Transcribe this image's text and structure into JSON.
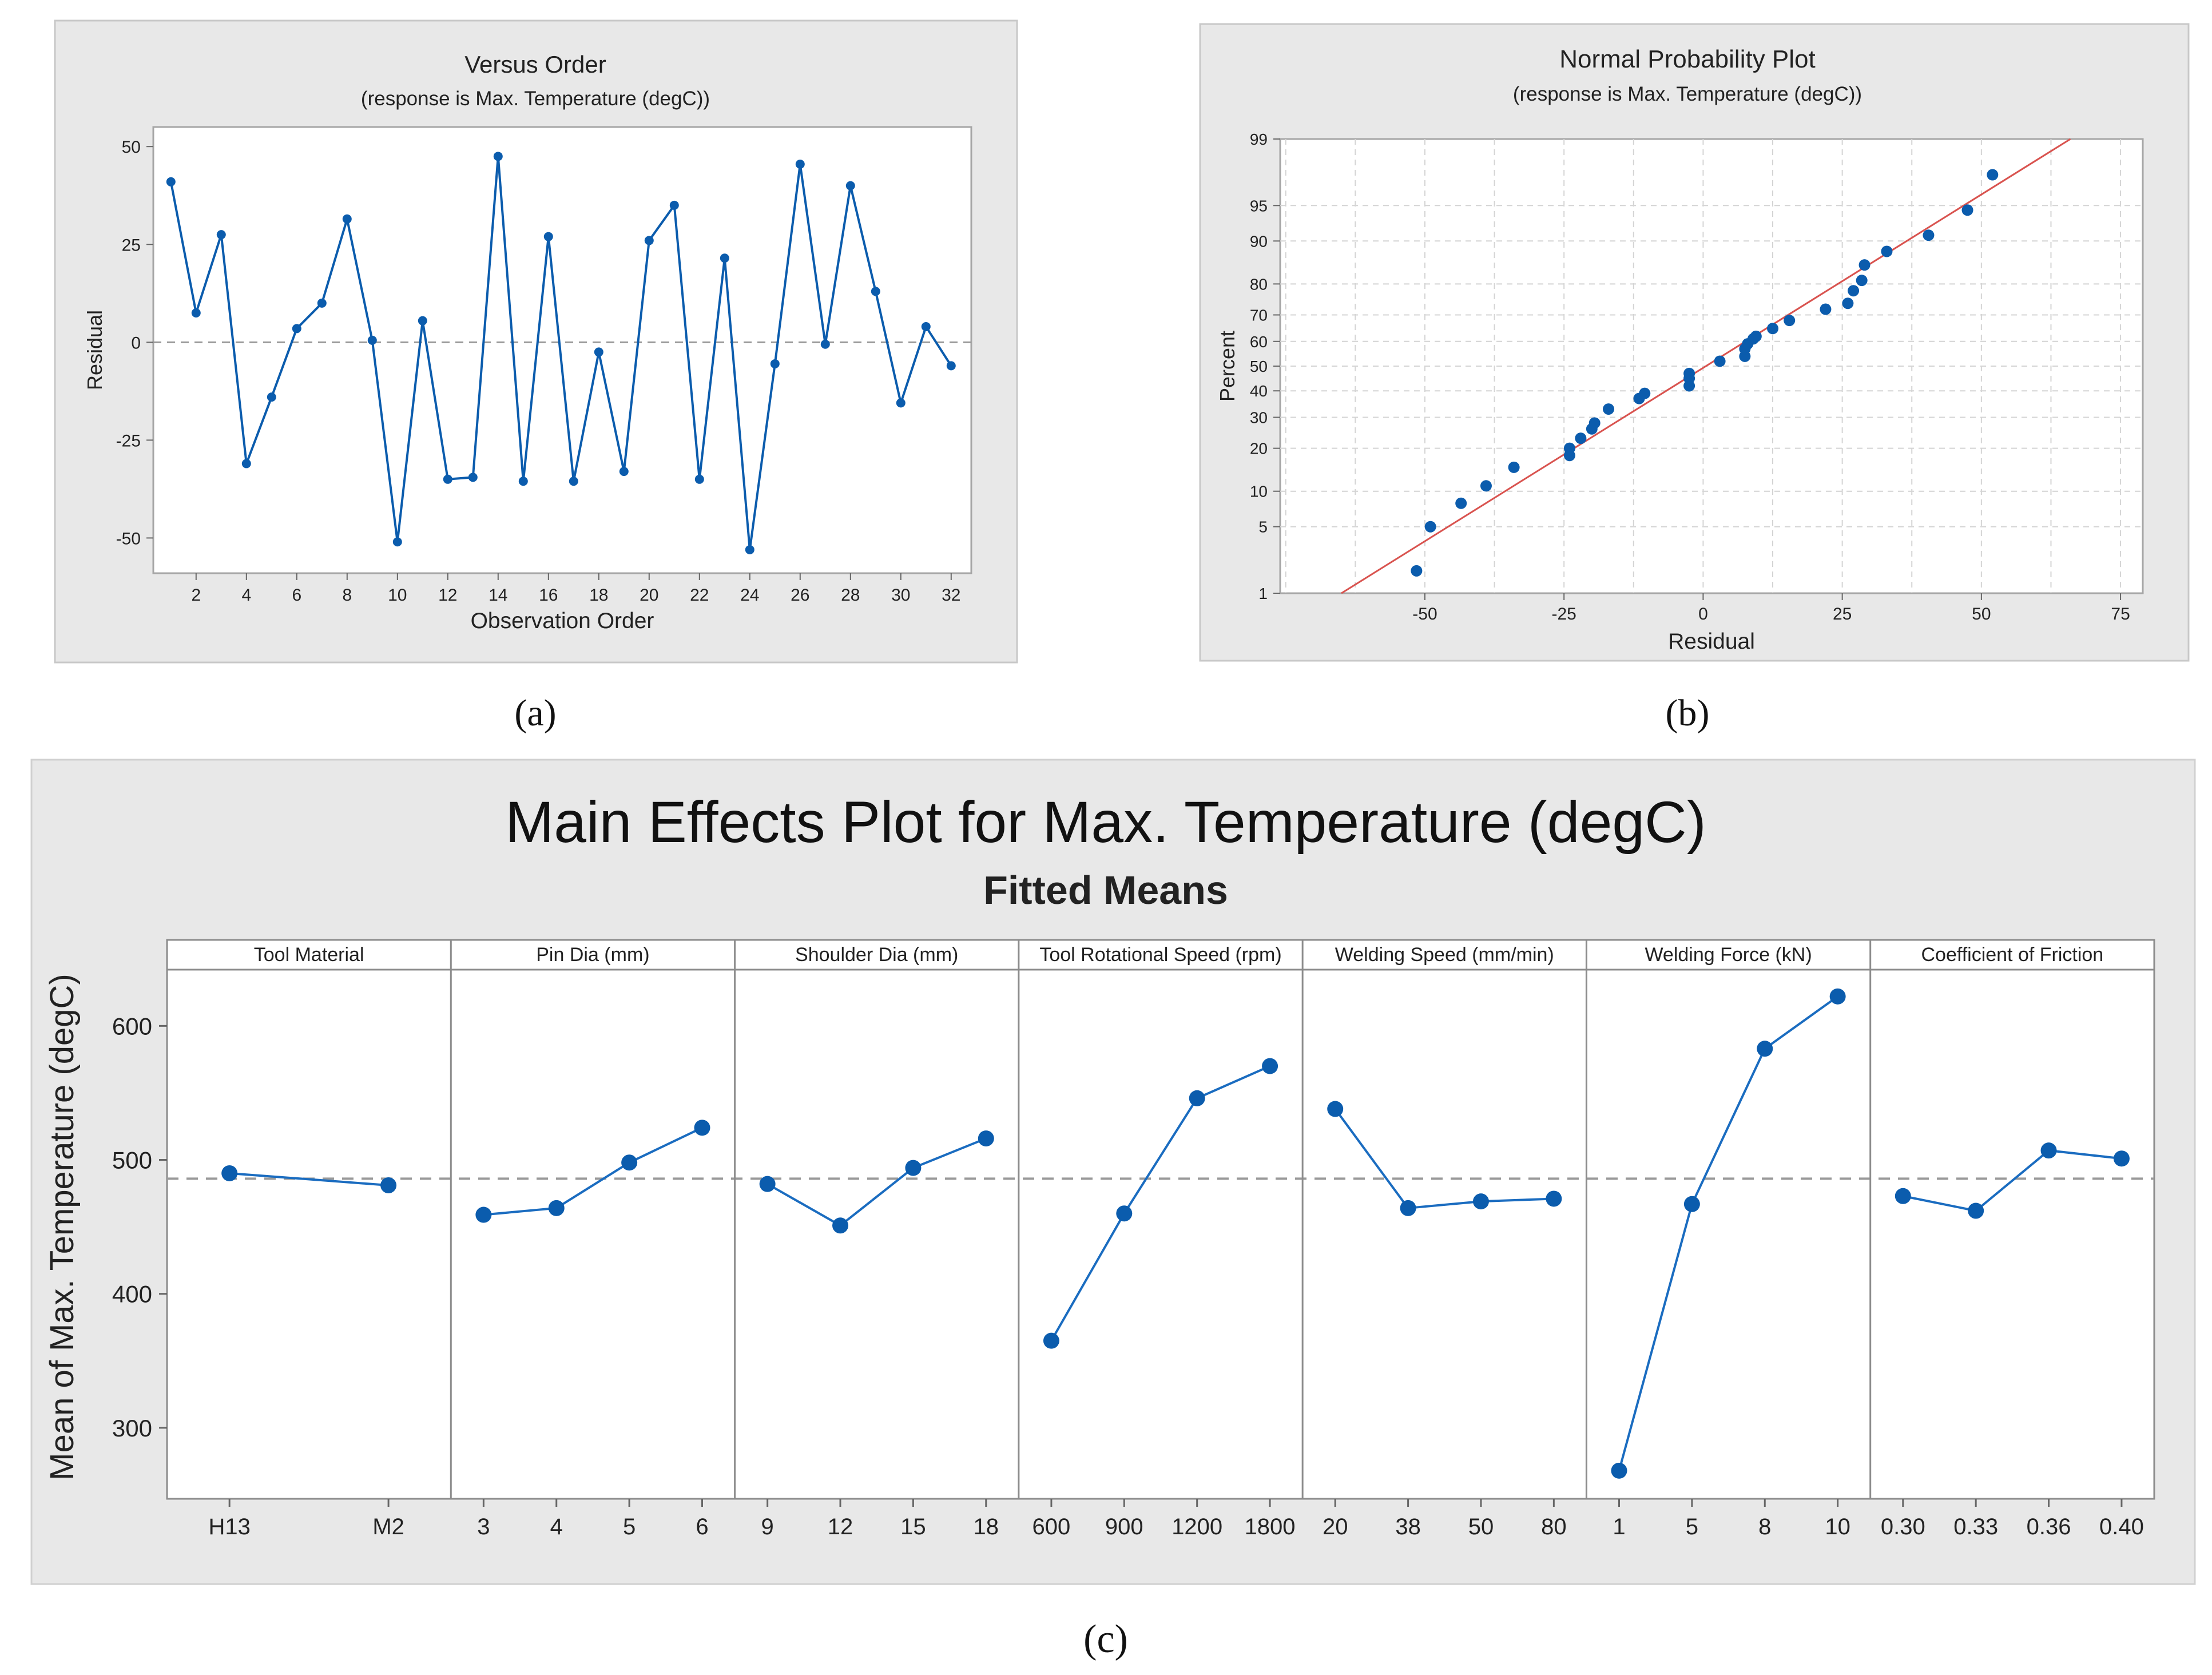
{
  "chart_data": [
    {
      "type": "line",
      "panel_label": "(a)",
      "title": "Versus Order",
      "subtitle": "(response is Max. Temperature (degC))",
      "xlabel": "Observation Order",
      "ylabel": "Residual",
      "xlim": [
        0.3,
        32.8
      ],
      "ylim": [
        -59,
        55
      ],
      "xticks": [
        2,
        4,
        6,
        8,
        10,
        12,
        14,
        16,
        18,
        20,
        22,
        24,
        26,
        28,
        30,
        32
      ],
      "yticks": [
        -50,
        -25,
        0,
        25,
        50
      ],
      "reference_line": 0,
      "x": [
        1,
        2,
        3,
        4,
        5,
        6,
        7,
        8,
        9,
        10,
        11,
        12,
        13,
        14,
        15,
        16,
        17,
        18,
        19,
        20,
        21,
        22,
        23,
        24,
        25,
        26,
        27,
        28,
        29,
        30,
        31,
        32
      ],
      "values": [
        41,
        7.5,
        27.5,
        -31,
        -14,
        3.5,
        10,
        31.5,
        0.5,
        -51,
        5.5,
        -35,
        -34.5,
        47.5,
        -35.5,
        27,
        -35.5,
        -2.5,
        -33,
        26,
        35,
        -35,
        21.5,
        -53,
        -5.5,
        45.5,
        -0.5,
        40,
        13,
        -15.5,
        4,
        -6
      ]
    },
    {
      "type": "scatter",
      "panel_label": "(b)",
      "title": "Normal Probability Plot",
      "subtitle": "(response is Max. Temperature (degC))",
      "xlabel": "Residual",
      "ylabel": "Percent",
      "xlim": [
        -76,
        79
      ],
      "xticks": [
        -50,
        -25,
        0,
        25,
        50,
        75
      ],
      "ytick_labels": [
        "1",
        "5",
        "10",
        "20",
        "30",
        "40",
        "50",
        "60",
        "70",
        "80",
        "90",
        "95",
        "99"
      ],
      "ytick_values": [
        1,
        5,
        10,
        20,
        30,
        40,
        50,
        60,
        70,
        80,
        90,
        95,
        99
      ],
      "fit_line": {
        "x": [
          -65,
          66
        ],
        "percent": [
          1,
          99
        ]
      },
      "x": [
        -51.5,
        -49,
        -43.5,
        -39,
        -34,
        -24,
        -24,
        -22,
        -20,
        -19.5,
        -17,
        -11.5,
        -10.5,
        -2.5,
        -2.5,
        -2.5,
        3,
        7.5,
        7.5,
        8,
        9,
        9.5,
        12.5,
        15.5,
        22,
        26,
        27,
        28.5,
        29,
        33,
        40.5,
        47.5,
        52
      ],
      "percent": [
        1.8,
        5,
        8,
        11,
        15,
        18,
        20,
        23,
        26,
        28,
        33,
        37,
        39,
        42,
        45,
        47,
        52,
        54,
        57,
        59,
        61,
        62,
        65,
        68,
        72,
        74,
        78,
        81,
        85,
        88,
        91,
        94.5,
        97.5
      ]
    },
    {
      "type": "line",
      "panel_label": "(c)",
      "title": "Main Effects Plot for Max. Temperature (degC)",
      "subtitle": "Fitted Means",
      "ylabel": "Mean of Max. Temperature (degC)",
      "ylim": [
        247,
        642
      ],
      "yticks": [
        300,
        400,
        500,
        600
      ],
      "reference_line": 486,
      "panels": [
        {
          "name": "Tool Material",
          "categories": [
            "H13",
            "M2"
          ],
          "values": [
            490,
            481
          ]
        },
        {
          "name": "Pin Dia (mm)",
          "categories": [
            "3",
            "4",
            "5",
            "6"
          ],
          "values": [
            459,
            464,
            498,
            524
          ]
        },
        {
          "name": "Shoulder Dia (mm)",
          "categories": [
            "9",
            "12",
            "15",
            "18"
          ],
          "values": [
            482,
            451,
            494,
            516
          ]
        },
        {
          "name": "Tool Rotational Speed (rpm)",
          "categories": [
            "600",
            "900",
            "1200",
            "1800"
          ],
          "values": [
            365,
            460,
            546,
            570
          ]
        },
        {
          "name": "Welding Speed (mm/min)",
          "categories": [
            "20",
            "38",
            "50",
            "80"
          ],
          "values": [
            538,
            464,
            469,
            471
          ]
        },
        {
          "name": "Welding Force (kN)",
          "categories": [
            "1",
            "5",
            "8",
            "10"
          ],
          "values": [
            268,
            467,
            583,
            622
          ]
        },
        {
          "name": "Coefficient of Friction",
          "categories": [
            "0.30",
            "0.33",
            "0.36",
            "0.40"
          ],
          "values": [
            473,
            462,
            507,
            501
          ]
        }
      ]
    }
  ]
}
